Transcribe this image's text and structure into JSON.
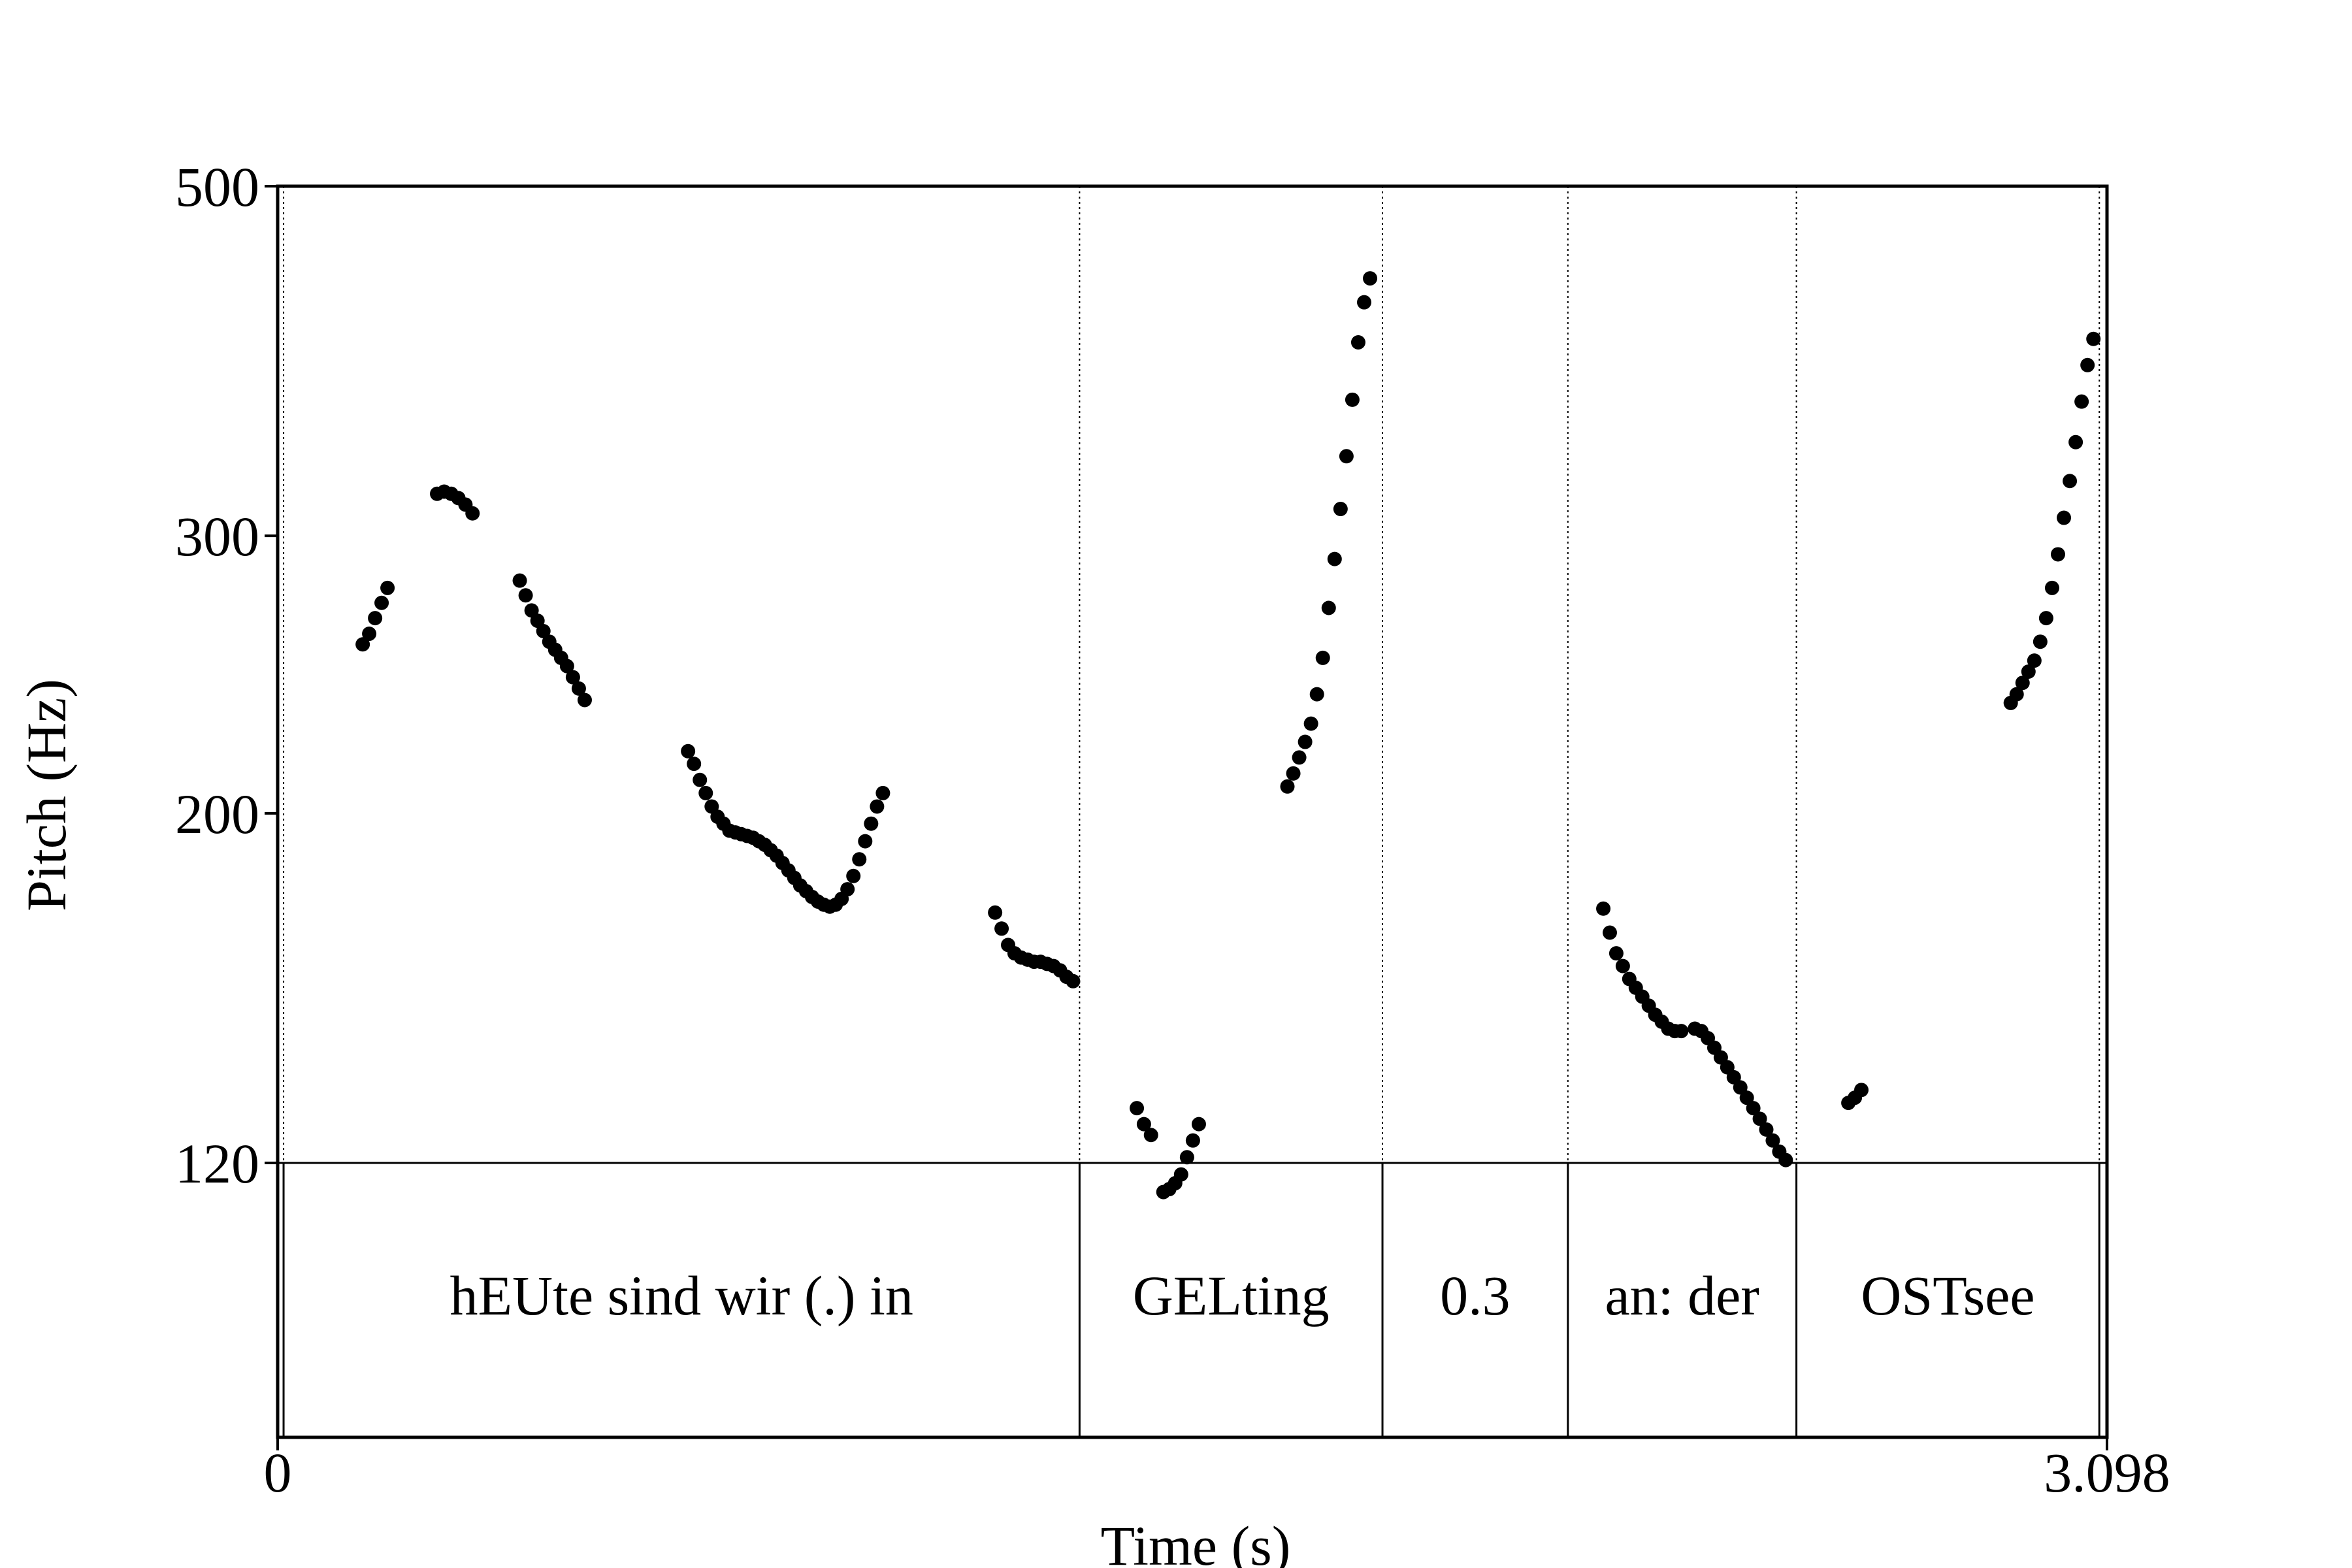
{
  "chart_data": {
    "type": "scatter",
    "title": "",
    "xlabel": "Time (s)",
    "ylabel": "Pitch (Hz)",
    "xlim": [
      0,
      3.098
    ],
    "ylim": [
      120,
      500
    ],
    "y_scale": "log",
    "grid": false,
    "legend": "none",
    "x_ticks": [
      {
        "value": 0,
        "label": "0"
      },
      {
        "value": 3.098,
        "label": "3.098"
      }
    ],
    "y_ticks": [
      {
        "value": 500,
        "label": "500"
      },
      {
        "value": 300,
        "label": "300"
      },
      {
        "value": 200,
        "label": "200"
      },
      {
        "value": 120,
        "label": "120"
      }
    ],
    "interval_boundaries": [
      0.01,
      1.358,
      1.871,
      2.185,
      2.572,
      3.085
    ],
    "intervals": [
      {
        "label": "hEUte sind wir (.) in",
        "start": 0.01,
        "end": 1.358
      },
      {
        "label": "GELting",
        "start": 1.358,
        "end": 1.871
      },
      {
        "label": "0.3",
        "start": 1.871,
        "end": 2.185
      },
      {
        "label": "an: der",
        "start": 2.185,
        "end": 2.572
      },
      {
        "label": "OSTsee",
        "start": 2.572,
        "end": 3.085
      }
    ],
    "series": [
      {
        "name": "pitch",
        "points": [
          [
            0.144,
            256
          ],
          [
            0.155,
            260
          ],
          [
            0.165,
            266
          ],
          [
            0.176,
            272
          ],
          [
            0.186,
            278
          ],
          [
            0.27,
            319
          ],
          [
            0.282,
            320
          ],
          [
            0.294,
            319
          ],
          [
            0.306,
            317
          ],
          [
            0.318,
            314
          ],
          [
            0.33,
            310
          ],
          [
            0.41,
            281
          ],
          [
            0.42,
            275
          ],
          [
            0.43,
            269
          ],
          [
            0.44,
            265
          ],
          [
            0.45,
            261
          ],
          [
            0.46,
            257
          ],
          [
            0.47,
            254
          ],
          [
            0.48,
            251
          ],
          [
            0.49,
            248
          ],
          [
            0.5,
            244
          ],
          [
            0.51,
            240
          ],
          [
            0.52,
            236
          ],
          [
            0.695,
            219
          ],
          [
            0.705,
            215
          ],
          [
            0.715,
            210
          ],
          [
            0.725,
            206
          ],
          [
            0.735,
            202
          ],
          [
            0.745,
            199
          ],
          [
            0.755,
            197
          ],
          [
            0.765,
            195
          ],
          [
            0.775,
            194.5
          ],
          [
            0.785,
            194
          ],
          [
            0.795,
            193.5
          ],
          [
            0.805,
            193
          ],
          [
            0.815,
            192
          ],
          [
            0.825,
            191
          ],
          [
            0.835,
            189.5
          ],
          [
            0.845,
            188
          ],
          [
            0.855,
            186
          ],
          [
            0.865,
            184
          ],
          [
            0.875,
            182
          ],
          [
            0.885,
            180
          ],
          [
            0.895,
            178.5
          ],
          [
            0.905,
            177
          ],
          [
            0.915,
            175.8
          ],
          [
            0.925,
            175
          ],
          [
            0.935,
            174.5
          ],
          [
            0.945,
            175
          ],
          [
            0.955,
            176.5
          ],
          [
            0.965,
            179
          ],
          [
            0.975,
            182.5
          ],
          [
            0.985,
            187
          ],
          [
            0.995,
            192
          ],
          [
            1.005,
            197
          ],
          [
            1.015,
            202
          ],
          [
            1.025,
            206
          ],
          [
            1.215,
            173
          ],
          [
            1.226,
            169
          ],
          [
            1.237,
            165
          ],
          [
            1.248,
            163
          ],
          [
            1.259,
            162
          ],
          [
            1.27,
            161.5
          ],
          [
            1.281,
            161
          ],
          [
            1.292,
            161
          ],
          [
            1.303,
            160.5
          ],
          [
            1.314,
            160
          ],
          [
            1.325,
            159
          ],
          [
            1.336,
            157.5
          ],
          [
            1.347,
            156.5
          ],
          [
            1.455,
            130
          ],
          [
            1.467,
            127
          ],
          [
            1.479,
            125
          ],
          [
            1.5,
            115
          ],
          [
            1.51,
            115.5
          ],
          [
            1.52,
            116.5
          ],
          [
            1.53,
            118
          ],
          [
            1.54,
            121
          ],
          [
            1.55,
            124
          ],
          [
            1.56,
            127
          ],
          [
            1.71,
            208
          ],
          [
            1.72,
            212
          ],
          [
            1.73,
            217
          ],
          [
            1.74,
            222
          ],
          [
            1.75,
            228
          ],
          [
            1.76,
            238
          ],
          [
            1.77,
            251
          ],
          [
            1.78,
            270
          ],
          [
            1.79,
            290
          ],
          [
            1.8,
            312
          ],
          [
            1.81,
            337
          ],
          [
            1.82,
            366
          ],
          [
            1.83,
            398
          ],
          [
            1.84,
            422
          ],
          [
            1.85,
            437
          ],
          [
            2.245,
            174
          ],
          [
            2.256,
            168
          ],
          [
            2.267,
            163
          ],
          [
            2.278,
            160
          ],
          [
            2.289,
            157
          ],
          [
            2.3,
            155
          ],
          [
            2.311,
            153
          ],
          [
            2.322,
            151
          ],
          [
            2.333,
            149
          ],
          [
            2.344,
            147.5
          ],
          [
            2.355,
            146
          ],
          [
            2.366,
            145.5
          ],
          [
            2.377,
            145.5
          ],
          [
            2.4,
            146
          ],
          [
            2.411,
            145.5
          ],
          [
            2.422,
            144
          ],
          [
            2.433,
            142
          ],
          [
            2.444,
            140
          ],
          [
            2.455,
            138
          ],
          [
            2.466,
            136
          ],
          [
            2.477,
            134
          ],
          [
            2.488,
            132
          ],
          [
            2.499,
            130
          ],
          [
            2.51,
            128
          ],
          [
            2.521,
            126
          ],
          [
            2.532,
            124
          ],
          [
            2.543,
            122
          ],
          [
            2.554,
            120.5
          ],
          [
            2.66,
            131
          ],
          [
            2.671,
            132
          ],
          [
            2.682,
            133.5
          ],
          [
            2.935,
            235
          ],
          [
            2.945,
            238
          ],
          [
            2.955,
            242
          ],
          [
            2.965,
            246
          ],
          [
            2.975,
            250
          ],
          [
            2.985,
            257
          ],
          [
            2.995,
            266
          ],
          [
            3.005,
            278
          ],
          [
            3.015,
            292
          ],
          [
            3.025,
            308
          ],
          [
            3.035,
            325
          ],
          [
            3.045,
            344
          ],
          [
            3.055,
            365
          ],
          [
            3.065,
            385
          ],
          [
            3.075,
            400
          ]
        ]
      }
    ]
  }
}
